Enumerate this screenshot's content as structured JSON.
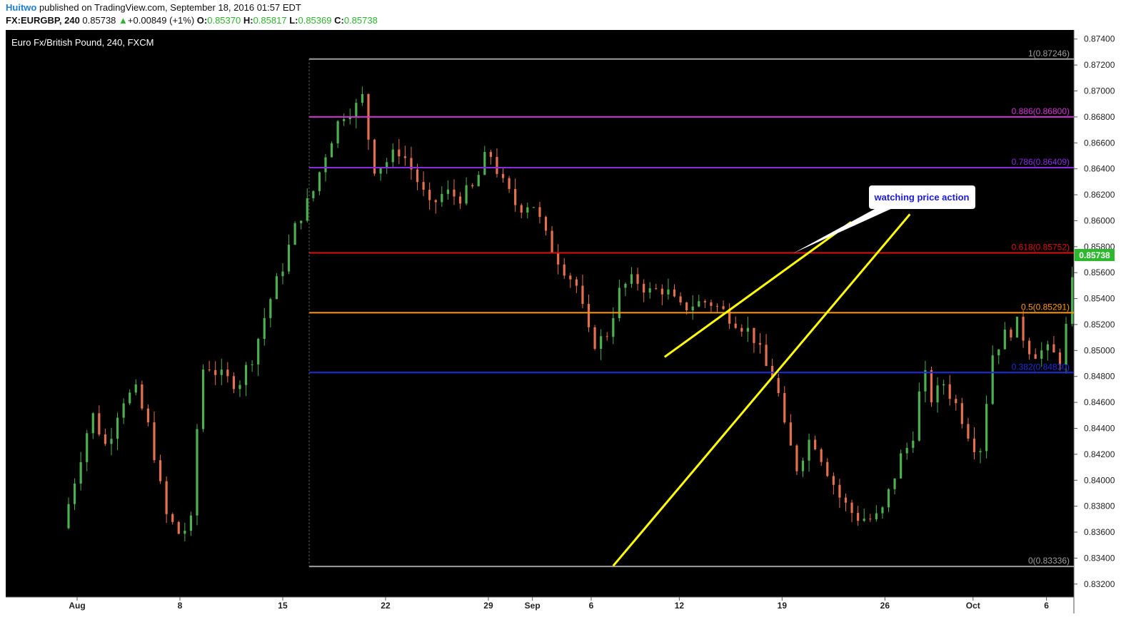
{
  "header": {
    "author": "Huitwo",
    "published_text": "published on TradingView.com, September 18, 2016 01:57 EDT",
    "symbol": "FX:EURGBP, 240",
    "last": "0.85738",
    "change_arrow": "▲",
    "change": "+0.00849 (+1%)",
    "o_label": "O:",
    "o_value": "0.85370",
    "h_label": "H:",
    "h_value": "0.85817",
    "l_label": "L:",
    "l_value": "0.85369",
    "c_label": "C:",
    "c_value": "0.85738"
  },
  "chart_title": "Euro Fx/British Pound, 240, FXCM",
  "annotation": "watching price action",
  "colors": {
    "background": "#000000",
    "up_candle": "#4caf50",
    "down_candle": "#e57050",
    "trendline": "#ffff00",
    "price_tag": "#2eb82e"
  },
  "chart_data": {
    "type": "candlestick",
    "title": "Euro Fx/British Pound, 240, FXCM",
    "ylim": [
      0.831,
      0.8747
    ],
    "y_ticks": [
      "0.87400",
      "0.87200",
      "0.87000",
      "0.86800",
      "0.86600",
      "0.86400",
      "0.86200",
      "0.86000",
      "0.85800",
      "0.85600",
      "0.85400",
      "0.85200",
      "0.85000",
      "0.84800",
      "0.84600",
      "0.84400",
      "0.84200",
      "0.84000",
      "0.83800",
      "0.83600",
      "0.83400",
      "0.83200"
    ],
    "x_ticks": [
      {
        "label": "Aug",
        "day": 1
      },
      {
        "label": "8",
        "day": 8
      },
      {
        "label": "15",
        "day": 15
      },
      {
        "label": "22",
        "day": 22
      },
      {
        "label": "29",
        "day": 29
      },
      {
        "label": "Sep",
        "day": 32
      },
      {
        "label": "6",
        "day": 36
      },
      {
        "label": "12",
        "day": 42
      },
      {
        "label": "19",
        "day": 49
      },
      {
        "label": "26",
        "day": 56
      },
      {
        "label": "Oct",
        "day": 62
      },
      {
        "label": "6",
        "day": 67
      }
    ],
    "current_price": "0.85738",
    "fibonacci": [
      {
        "label": "1(0.87246)",
        "value": 0.87246,
        "color": "#9e9e9e"
      },
      {
        "label": "0.886(0.86800)",
        "value": 0.868,
        "color": "#d633d6"
      },
      {
        "label": "0.786(0.86409)",
        "value": 0.86409,
        "color": "#8a2be2"
      },
      {
        "label": "0.618(0.85752)",
        "value": 0.85752,
        "color": "#dd1111"
      },
      {
        "label": "0.5(0.85291)",
        "value": 0.85291,
        "color": "#ff9900"
      },
      {
        "label": "0.382(0.84830)",
        "value": 0.8483,
        "color": "#1f2fd8"
      },
      {
        "label": "0(0.83336)",
        "value": 0.83336,
        "color": "#9e9e9e"
      }
    ],
    "trendlines": [
      {
        "name": "upper",
        "from": {
          "day": 41.0,
          "price": 0.8495
        },
        "to": {
          "day": 53.7,
          "price": 0.8599
        }
      },
      {
        "name": "lower",
        "from": {
          "day": 37.5,
          "price": 0.8334
        },
        "to": {
          "day": 57.7,
          "price": 0.8605
        }
      }
    ],
    "price_path": [
      {
        "day": 0.0,
        "price": 0.8363
      },
      {
        "day": 1.0,
        "price": 0.8408
      },
      {
        "day": 2.0,
        "price": 0.8452
      },
      {
        "day": 3.0,
        "price": 0.8425
      },
      {
        "day": 4.0,
        "price": 0.8462
      },
      {
        "day": 5.0,
        "price": 0.8468
      },
      {
        "day": 6.0,
        "price": 0.8436
      },
      {
        "day": 7.0,
        "price": 0.8374
      },
      {
        "day": 8.0,
        "price": 0.8358
      },
      {
        "day": 8.8,
        "price": 0.8368
      },
      {
        "day": 9.4,
        "price": 0.8485
      },
      {
        "day": 10.0,
        "price": 0.8488
      },
      {
        "day": 11.0,
        "price": 0.8478
      },
      {
        "day": 12.0,
        "price": 0.8475
      },
      {
        "day": 13.0,
        "price": 0.8497
      },
      {
        "day": 14.0,
        "price": 0.8535
      },
      {
        "day": 15.0,
        "price": 0.8565
      },
      {
        "day": 16.0,
        "price": 0.86
      },
      {
        "day": 17.0,
        "price": 0.862
      },
      {
        "day": 18.0,
        "price": 0.8655
      },
      {
        "day": 19.0,
        "price": 0.8682
      },
      {
        "day": 20.0,
        "price": 0.8688
      },
      {
        "day": 20.6,
        "price": 0.8698
      },
      {
        "day": 21.0,
        "price": 0.864
      },
      {
        "day": 22.0,
        "price": 0.8645
      },
      {
        "day": 23.0,
        "price": 0.8655
      },
      {
        "day": 24.0,
        "price": 0.8635
      },
      {
        "day": 25.0,
        "price": 0.861
      },
      {
        "day": 26.0,
        "price": 0.8622
      },
      {
        "day": 27.0,
        "price": 0.8618
      },
      {
        "day": 28.0,
        "price": 0.8625
      },
      {
        "day": 29.0,
        "price": 0.8655
      },
      {
        "day": 30.0,
        "price": 0.8628
      },
      {
        "day": 31.0,
        "price": 0.861
      },
      {
        "day": 32.0,
        "price": 0.8615
      },
      {
        "day": 33.0,
        "price": 0.8585
      },
      {
        "day": 34.0,
        "price": 0.8566
      },
      {
        "day": 35.0,
        "price": 0.855
      },
      {
        "day": 36.0,
        "price": 0.8505
      },
      {
        "day": 37.0,
        "price": 0.851
      },
      {
        "day": 38.0,
        "price": 0.8548
      },
      {
        "day": 39.0,
        "price": 0.8555
      },
      {
        "day": 40.0,
        "price": 0.8545
      },
      {
        "day": 41.0,
        "price": 0.8548
      },
      {
        "day": 42.0,
        "price": 0.8532
      },
      {
        "day": 43.0,
        "price": 0.8536
      },
      {
        "day": 44.0,
        "price": 0.8538
      },
      {
        "day": 45.0,
        "price": 0.853
      },
      {
        "day": 46.0,
        "price": 0.8522
      },
      {
        "day": 47.0,
        "price": 0.8512
      },
      {
        "day": 48.0,
        "price": 0.8485
      },
      {
        "day": 48.6,
        "price": 0.8478
      },
      {
        "day": 49.0,
        "price": 0.8445
      },
      {
        "day": 50.0,
        "price": 0.841
      },
      {
        "day": 51.0,
        "price": 0.8435
      },
      {
        "day": 52.0,
        "price": 0.841
      },
      {
        "day": 53.0,
        "price": 0.8385
      },
      {
        "day": 54.0,
        "price": 0.8372
      },
      {
        "day": 55.0,
        "price": 0.837
      },
      {
        "day": 55.7,
        "price": 0.8372
      },
      {
        "day": 56.4,
        "price": 0.8395
      },
      {
        "day": 57.2,
        "price": 0.8422
      },
      {
        "day": 57.8,
        "price": 0.8428
      },
      {
        "day": 58.6,
        "price": 0.8485
      },
      {
        "day": 59.2,
        "price": 0.8462
      },
      {
        "day": 60.0,
        "price": 0.8475
      },
      {
        "day": 61.0,
        "price": 0.8455
      },
      {
        "day": 62.0,
        "price": 0.8428
      },
      {
        "day": 62.6,
        "price": 0.8425
      },
      {
        "day": 63.2,
        "price": 0.8495
      },
      {
        "day": 64.0,
        "price": 0.851
      },
      {
        "day": 65.0,
        "price": 0.852
      },
      {
        "day": 66.0,
        "price": 0.8498
      },
      {
        "day": 67.0,
        "price": 0.85
      },
      {
        "day": 68.0,
        "price": 0.8493
      },
      {
        "day": 68.6,
        "price": 0.8537
      },
      {
        "day": 69.0,
        "price": 0.8574
      }
    ]
  }
}
